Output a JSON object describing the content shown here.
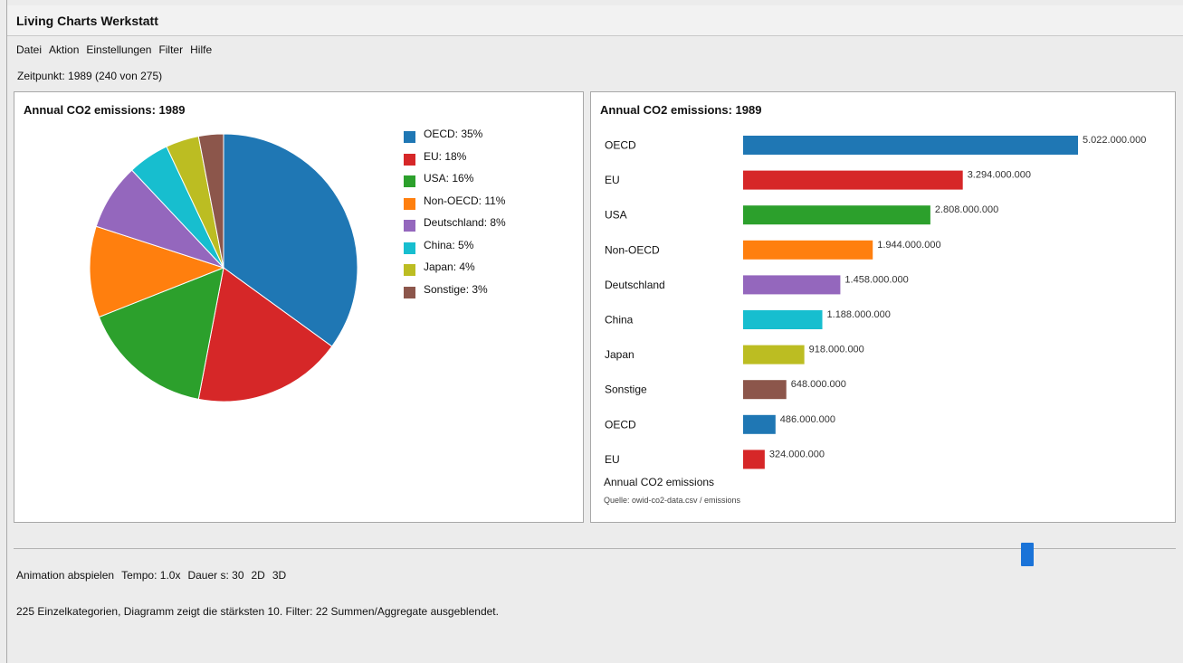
{
  "window": {
    "title": "Living Charts Werkstatt"
  },
  "menu": [
    "Datei",
    "Aktion",
    "Einstellungen",
    "Filter",
    "Hilfe"
  ],
  "status_top": "Zeitpunkt: 1989 (240 von 275)",
  "slider": {
    "current": 240,
    "total": 275
  },
  "controls": {
    "play_label": "Animation abspielen",
    "tempo_label": "Tempo: 1.0x",
    "duration_label": "Dauer s: 30",
    "mode_2d": "2D",
    "mode_3d": "3D"
  },
  "info_text": "225 Einzelkategorien, Diagramm zeigt die stärksten 10. Filter: 22 Summen/Aggregate ausgeblendet.",
  "bar_panel": {
    "caption": "Annual CO2 emissions",
    "source": "Quelle: owid-co2-data.csv / emissions"
  },
  "chart_data": [
    {
      "type": "pie",
      "title": "Annual CO2 emissions: 1989",
      "categories": [
        "OECD",
        "EU",
        "USA",
        "Non-OECD",
        "Deutschland",
        "China",
        "Japan",
        "Sonstige"
      ],
      "values": [
        35,
        18,
        16,
        11,
        8,
        5,
        4,
        3
      ],
      "legend_labels": [
        "OECD: 35%",
        "EU: 18%",
        "USA: 16%",
        "Non-OECD: 11%",
        "Deutschland: 8%",
        "China: 5%",
        "Japan: 4%",
        "Sonstige: 3%"
      ],
      "colors": [
        "#1f77b4",
        "#d62728",
        "#2ca02c",
        "#ff7f0e",
        "#9467bd",
        "#17becf",
        "#bcbd22",
        "#8c564b"
      ],
      "legend_position": "top-right"
    },
    {
      "type": "bar",
      "orientation": "horizontal",
      "title": "Annual CO2 emissions: 1989",
      "categories": [
        "OECD",
        "EU",
        "USA",
        "Non-OECD",
        "Deutschland",
        "China",
        "Japan",
        "Sonstige",
        "OECD",
        "EU"
      ],
      "values": [
        5022000000,
        3294000000,
        2808000000,
        1944000000,
        1458000000,
        1188000000,
        918000000,
        648000000,
        486000000,
        324000000
      ],
      "value_labels": [
        "5.022.000.000",
        "3.294.000.000",
        "2.808.000.000",
        "1.944.000.000",
        "1.458.000.000",
        "1.188.000.000",
        "918.000.000",
        "648.000.000",
        "486.000.000",
        "324.000.000"
      ],
      "colors": [
        "#1f77b4",
        "#d62728",
        "#2ca02c",
        "#ff7f0e",
        "#9467bd",
        "#17becf",
        "#bcbd22",
        "#8c564b",
        "#1f77b4",
        "#d62728"
      ]
    }
  ]
}
